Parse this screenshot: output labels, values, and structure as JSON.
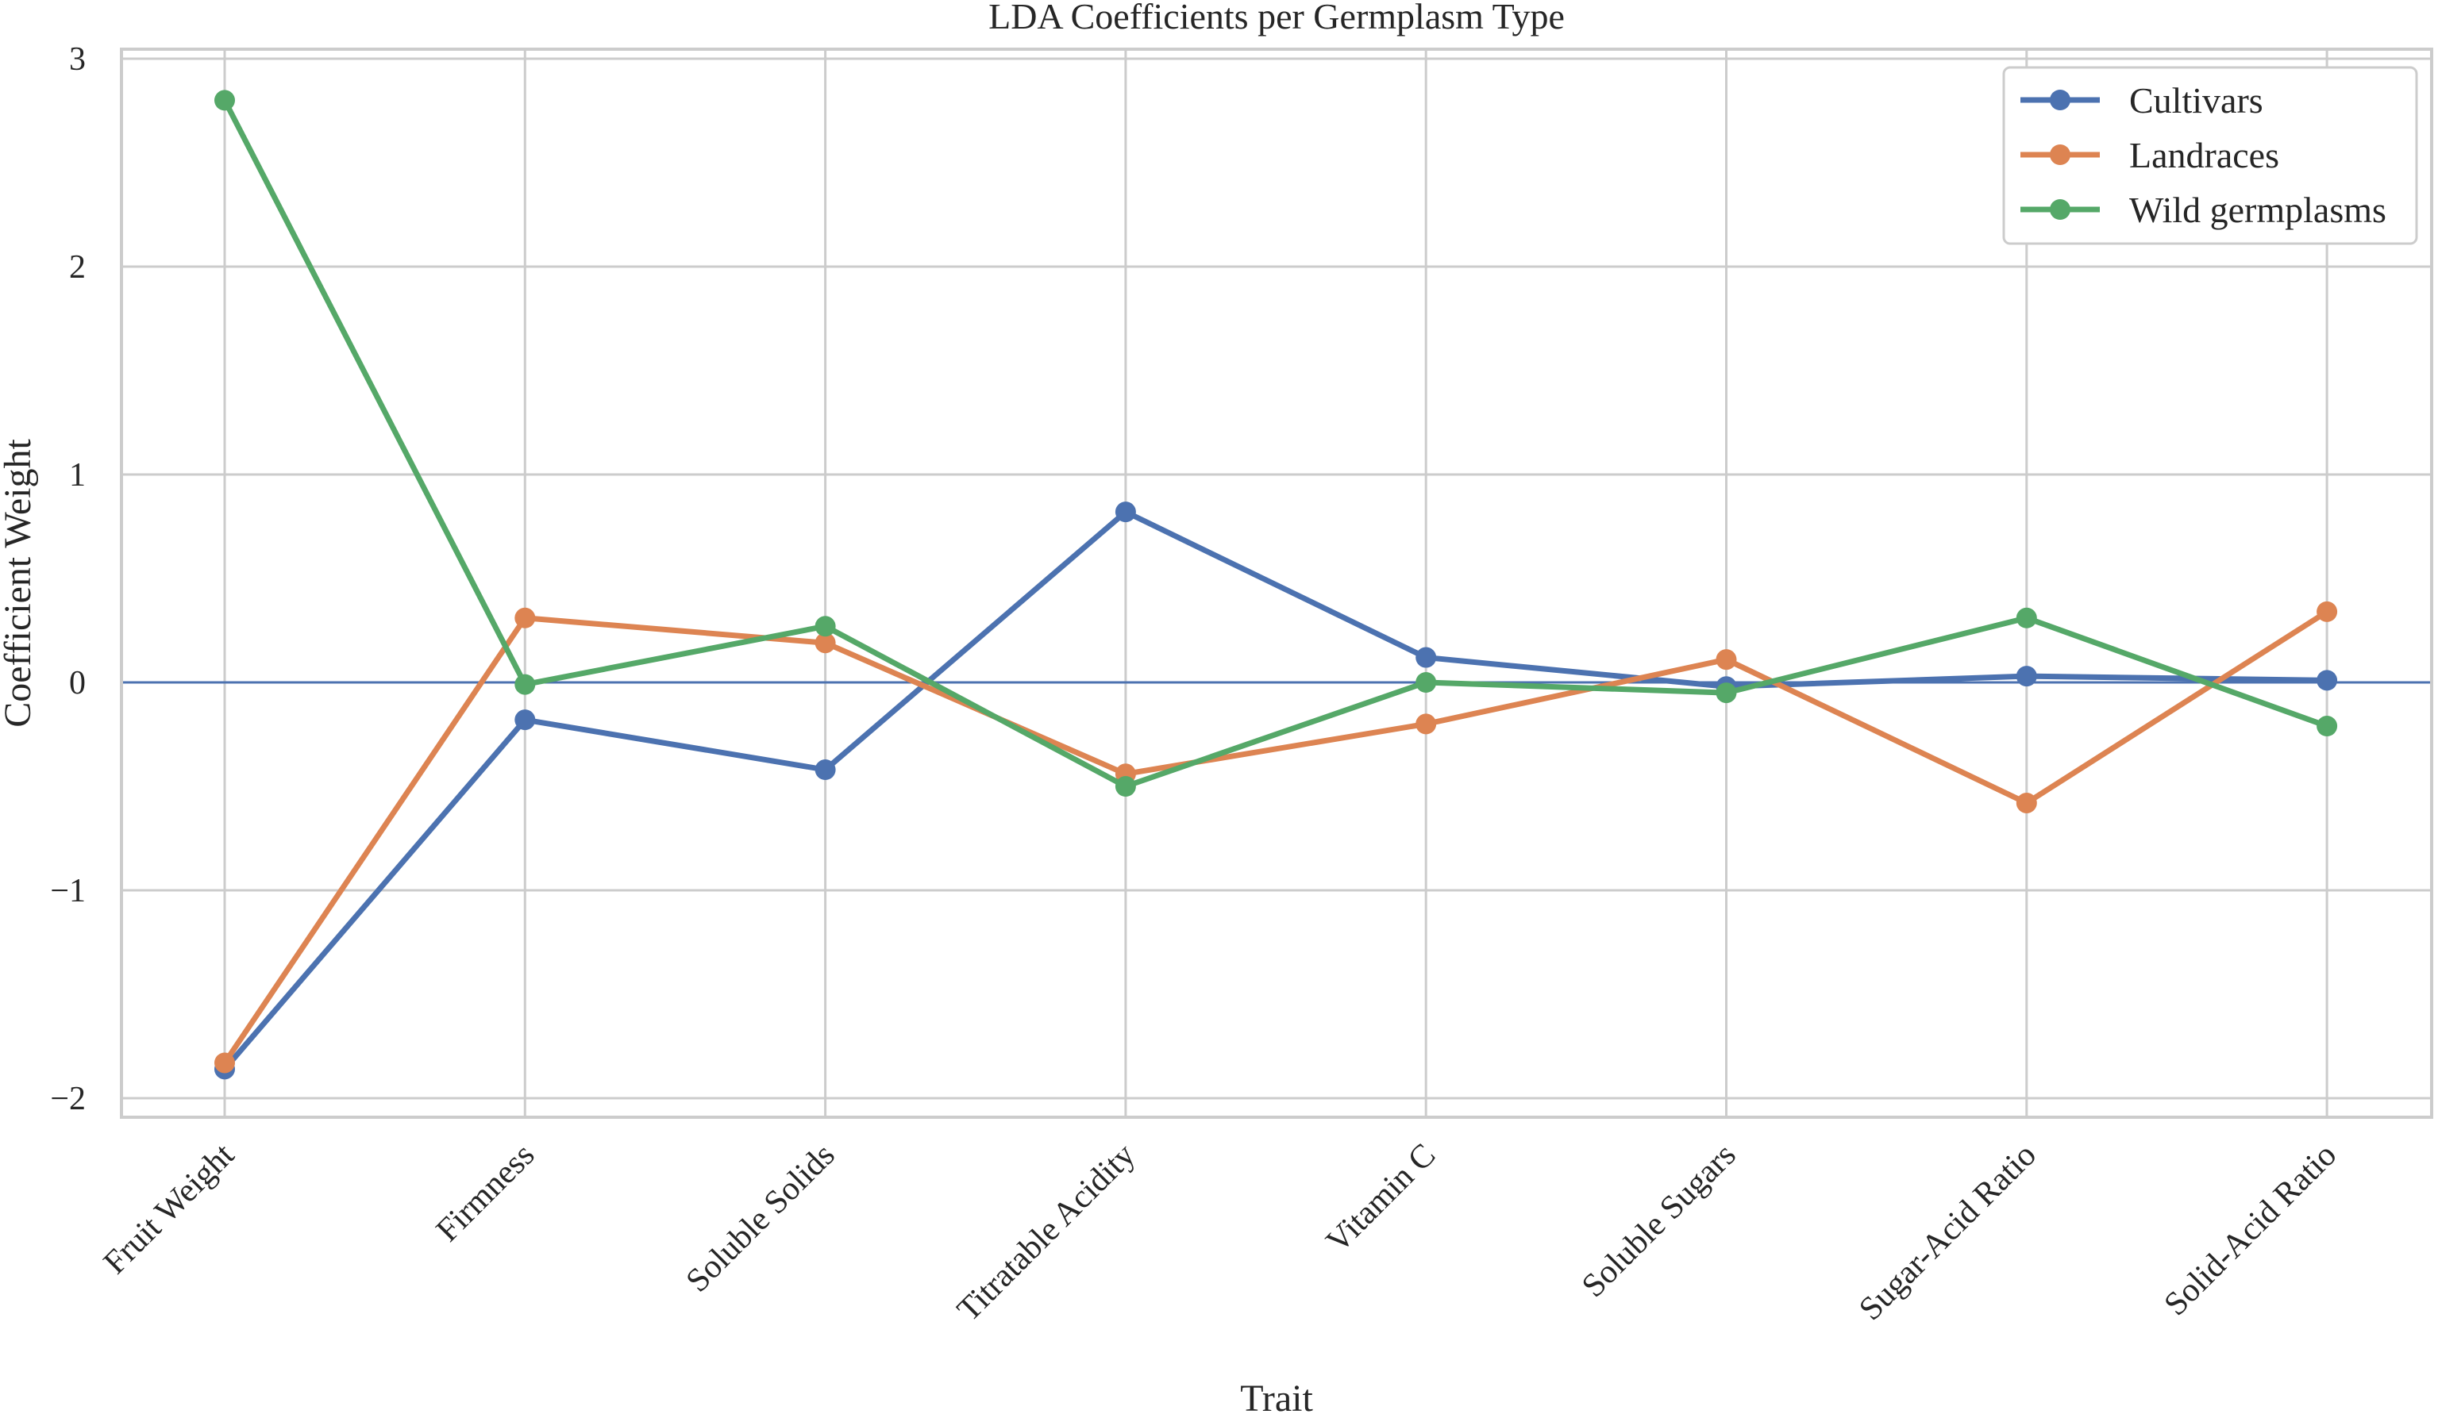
{
  "chart_data": {
    "type": "line",
    "title": "LDA Coefficients per Germplasm Type",
    "xlabel": "Trait",
    "ylabel": "Coefficient Weight",
    "categories": [
      "Fruit Weight",
      "Firmness",
      "Soluble Solids",
      "Titratable Acidity",
      "Vitamin C",
      "Soluble Sugars",
      "Sugar-Acid Ratio",
      "Solid-Acid Ratio"
    ],
    "yticks": [
      -2,
      -1,
      0,
      1,
      2,
      3
    ],
    "ytick_labels": [
      "−2",
      "−1",
      "0",
      "1",
      "2",
      "3"
    ],
    "ylim": [
      -2.1,
      3.05
    ],
    "grid": true,
    "zero_line": 0,
    "legend_position": "top-right",
    "series": [
      {
        "name": "Cultivars",
        "color": "#4c72b0",
        "values": [
          -1.86,
          -0.18,
          -0.42,
          0.82,
          0.12,
          -0.02,
          0.03,
          0.01
        ]
      },
      {
        "name": "Landraces",
        "color": "#dd8452",
        "values": [
          -1.83,
          0.31,
          0.19,
          -0.44,
          -0.2,
          0.11,
          -0.58,
          0.34
        ]
      },
      {
        "name": "Wild germplasms",
        "color": "#55a868",
        "values": [
          2.8,
          -0.01,
          0.27,
          -0.5,
          0.0,
          -0.05,
          0.31,
          -0.21
        ]
      }
    ]
  }
}
